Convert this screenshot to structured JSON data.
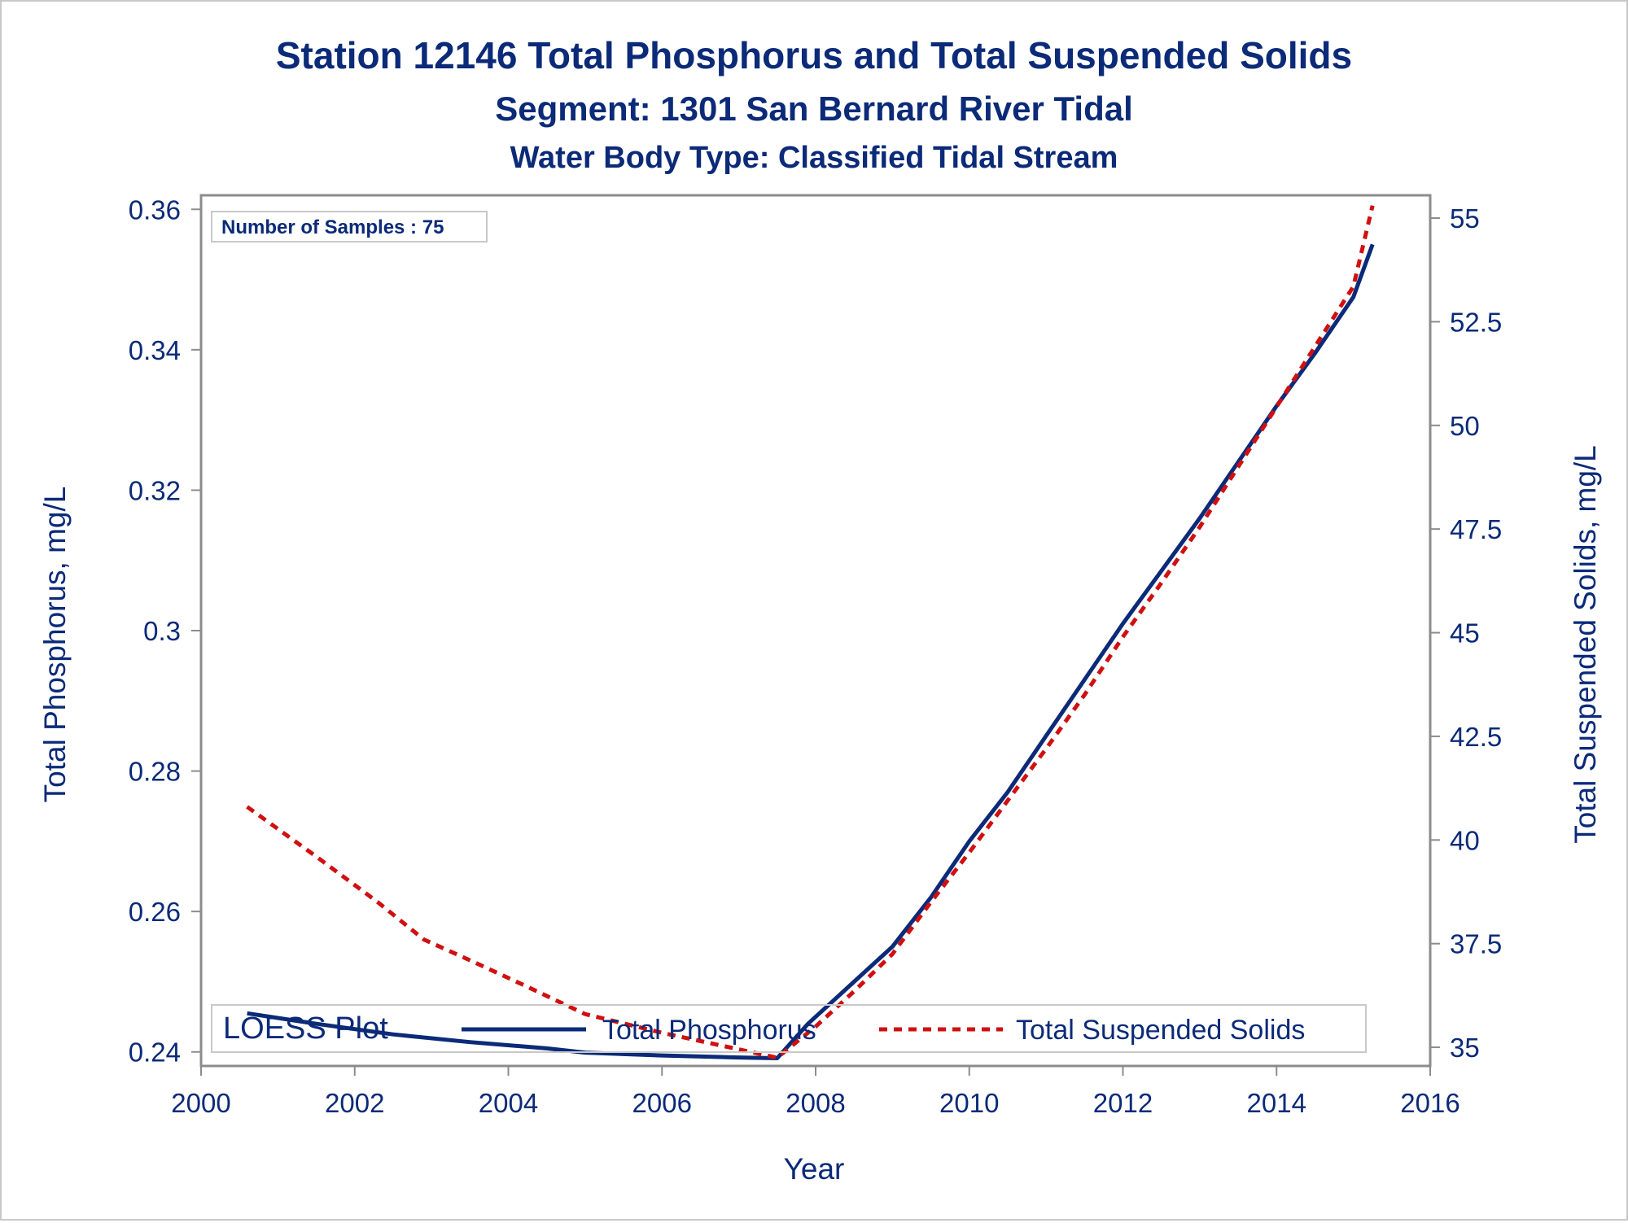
{
  "titles": {
    "line1": "Station 12146  Total Phosphorus and Total Suspended Solids",
    "line2": "Segment: 1301  San Bernard River Tidal",
    "line3": "Water Body Type: Classified Tidal Stream"
  },
  "annotation": "Number of Samples : 75",
  "legend": {
    "title": "LOESS Plot",
    "placement": "bottom inside",
    "entries": [
      "Total Phosphorus",
      "Total Suspended Solids"
    ]
  },
  "colors": {
    "text": "#0b2a78",
    "phosphorus": "#0b2a78",
    "tss": "#d01010",
    "axis": "#8c8c8c"
  },
  "chart_data": {
    "type": "line",
    "xlabel": "Year",
    "ylabel": "Total Phosphorus, mg/L",
    "y2label": "Total Suspended Solids, mg/L",
    "xlim": [
      2000,
      2016
    ],
    "ylim": [
      0.238,
      0.362
    ],
    "y2lim": [
      34.55,
      55.55
    ],
    "x_ticks": [
      2000,
      2002,
      2004,
      2006,
      2008,
      2010,
      2012,
      2014,
      2016
    ],
    "y_ticks": [
      0.24,
      0.26,
      0.28,
      0.3,
      0.32,
      0.34,
      0.36
    ],
    "y_tick_labels": [
      "0.24",
      "0.26",
      "0.28",
      "0.3",
      "0.32",
      "0.34",
      "0.36"
    ],
    "y2_ticks": [
      35,
      37.5,
      40,
      42.5,
      45,
      47.5,
      50,
      52.5,
      55
    ],
    "y2_tick_labels": [
      "35",
      "37.5",
      "40",
      "42.5",
      "45",
      "47.5",
      "50",
      "52.5",
      "55"
    ],
    "grid": false,
    "series": [
      {
        "name": "Total Phosphorus",
        "axis": "left",
        "style": "solid",
        "x": [
          2000.6,
          2001.5,
          2002.5,
          2003.5,
          2004.5,
          2005.0,
          2006.0,
          2007.0,
          2007.5,
          2007.9,
          2008.5,
          2009.0,
          2009.5,
          2010.0,
          2010.5,
          2011.0,
          2011.5,
          2012.0,
          2012.5,
          2013.0,
          2013.5,
          2014.0,
          2014.5,
          2015.0,
          2015.25
        ],
        "values": [
          0.2455,
          0.244,
          0.2425,
          0.2414,
          0.2405,
          0.2399,
          0.2395,
          0.2392,
          0.2391,
          0.244,
          0.25,
          0.255,
          0.262,
          0.27,
          0.277,
          0.285,
          0.293,
          0.301,
          0.3085,
          0.316,
          0.324,
          0.332,
          0.3395,
          0.3475,
          0.355
        ]
      },
      {
        "name": "Total Suspended Solids",
        "axis": "right",
        "style": "dashed",
        "x": [
          2000.6,
          2001.5,
          2002.3,
          2002.9,
          2003.5,
          2004.2,
          2005.0,
          2006.0,
          2007.0,
          2007.5,
          2008.0,
          2008.5,
          2009.0,
          2009.5,
          2010.0,
          2010.5,
          2011.0,
          2011.5,
          2012.0,
          2012.5,
          2013.0,
          2013.5,
          2014.0,
          2014.5,
          2015.0,
          2015.25
        ],
        "values": [
          40.8,
          39.6,
          38.5,
          37.6,
          37.1,
          36.5,
          35.8,
          35.35,
          34.95,
          34.75,
          35.5,
          36.35,
          37.25,
          38.5,
          39.7,
          40.95,
          42.2,
          43.5,
          44.9,
          46.2,
          47.55,
          49.0,
          50.45,
          51.9,
          53.35,
          55.3
        ]
      }
    ]
  }
}
